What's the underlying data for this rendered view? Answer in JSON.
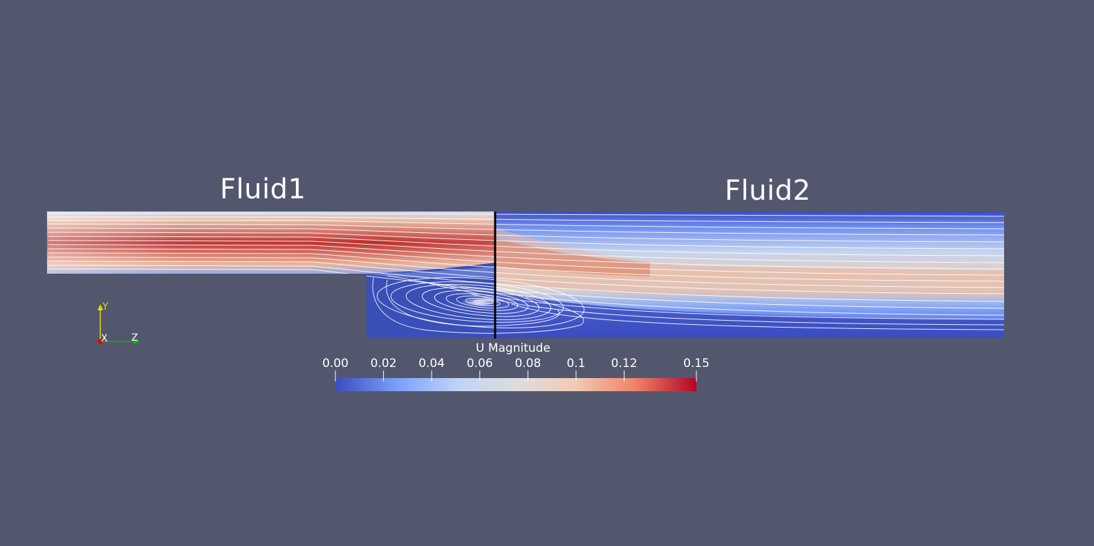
{
  "regions": {
    "left_label": "Fluid1",
    "right_label": "Fluid2"
  },
  "colorbar": {
    "title": "U Magnitude",
    "ticks": [
      "0.00",
      "0.02",
      "0.04",
      "0.06",
      "0.08",
      "0.1",
      "0.12",
      "0.15"
    ],
    "range": [
      0,
      0.15
    ],
    "colormap": [
      "#3b4cc0",
      "#7b9ff9",
      "#c0d4f5",
      "#dddddd",
      "#f2cbb7",
      "#ee8468",
      "#b40426"
    ]
  },
  "orientation_axes": {
    "y_label": "Y",
    "x_label": "X",
    "z_label": "Z"
  },
  "colors": {
    "background": "#52576e",
    "low": "#3b4cc0",
    "high": "#b40426",
    "interface": "#000000",
    "streamline": "#ffffff"
  }
}
